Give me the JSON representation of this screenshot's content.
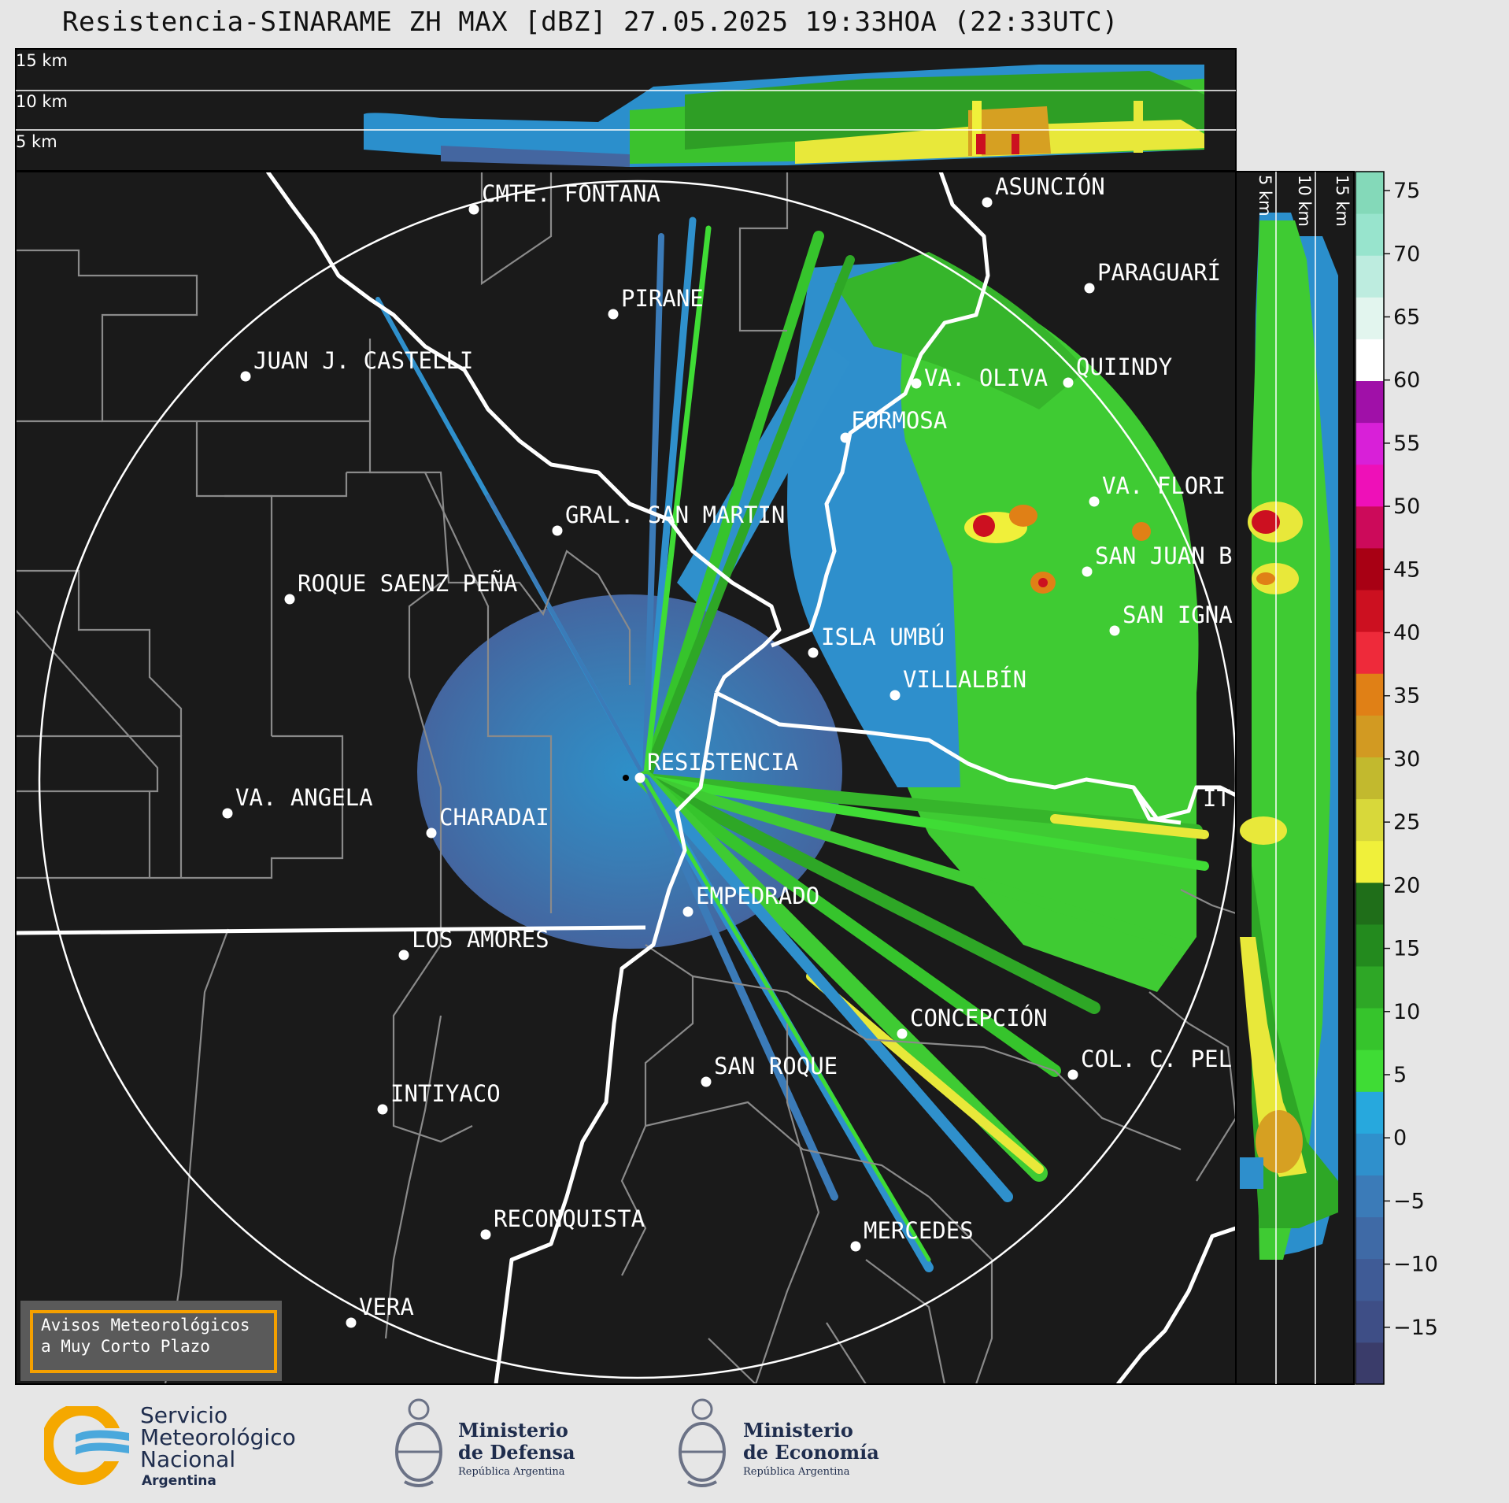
{
  "title": "Resistencia-SINARAME ZH MAX [dBZ] 27.05.2025 19:33HOA (22:33UTC)",
  "top_panel": {
    "altitude_labels": [
      "15 km",
      "10 km",
      "5 km"
    ]
  },
  "side_panel": {
    "altitude_labels": [
      "5 km",
      "10 km",
      "15 km"
    ]
  },
  "colorbar": {
    "ticks": [
      "75",
      "70",
      "65",
      "60",
      "55",
      "50",
      "45",
      "40",
      "35",
      "30",
      "25",
      "20",
      "15",
      "10",
      "5",
      "0",
      "−5",
      "−10",
      "−15"
    ],
    "unit": "dBZ",
    "colors": [
      "#3a3c6a",
      "#3e4e86",
      "#3f5b96",
      "#3f6aa6",
      "#3b7bb8",
      "#2f90cc",
      "#27a8dd",
      "#3fdc35",
      "#36c42c",
      "#2ea726",
      "#238a1e",
      "#1f6e19",
      "#f0f03a",
      "#d8d83a",
      "#c2b92e",
      "#d29a22",
      "#e08016",
      "#ee2a3a",
      "#cc1020",
      "#a80014",
      "#cc0a5a",
      "#ee10b8",
      "#d820d8",
      "#a010a8",
      "#ffffff",
      "#e2f5ee",
      "#bdecdf",
      "#98e4cd",
      "#84d9b9"
    ]
  },
  "cities": [
    {
      "name": "CMTE. FONTANA"
    },
    {
      "name": "ASUNCIÓN"
    },
    {
      "name": "PARAGUARÍ"
    },
    {
      "name": "PIRANE"
    },
    {
      "name": "JUAN J. CASTELLI"
    },
    {
      "name": "VA. OLIVA"
    },
    {
      "name": "QUIINDY"
    },
    {
      "name": "FORMOSA"
    },
    {
      "name": "VA. FLORI"
    },
    {
      "name": "GRAL. SAN MARTIN"
    },
    {
      "name": "SAN JUAN B"
    },
    {
      "name": "ROQUE SAENZ PEÑA"
    },
    {
      "name": "SAN IGNA"
    },
    {
      "name": "ISLA UMBÚ"
    },
    {
      "name": "VILLALBÍN"
    },
    {
      "name": "RESISTENCIA"
    },
    {
      "name": "IT"
    },
    {
      "name": "VA. ANGELA"
    },
    {
      "name": "CHARADAI"
    },
    {
      "name": "EMPEDRADO"
    },
    {
      "name": "LOS AMORES"
    },
    {
      "name": "CONCEPCIÓN"
    },
    {
      "name": "COL. C. PEL"
    },
    {
      "name": "SAN ROQUE"
    },
    {
      "name": "INTIYACO"
    },
    {
      "name": "RECONQUISTA"
    },
    {
      "name": "MERCEDES"
    },
    {
      "name": "VERA"
    }
  ],
  "warning_box": {
    "line1": "Avisos Meteorológicos",
    "line2": "a Muy Corto Plazo"
  },
  "logos": {
    "smn": {
      "line1": "Servicio",
      "line2": "Meteorológico",
      "line3": "Nacional",
      "line4": "Argentina"
    },
    "defensa": {
      "line1": "Ministerio",
      "line2": "de Defensa",
      "line3": "República Argentina"
    },
    "economia": {
      "line1": "Ministerio",
      "line2": "de Economía",
      "line3": "República Argentina"
    }
  }
}
